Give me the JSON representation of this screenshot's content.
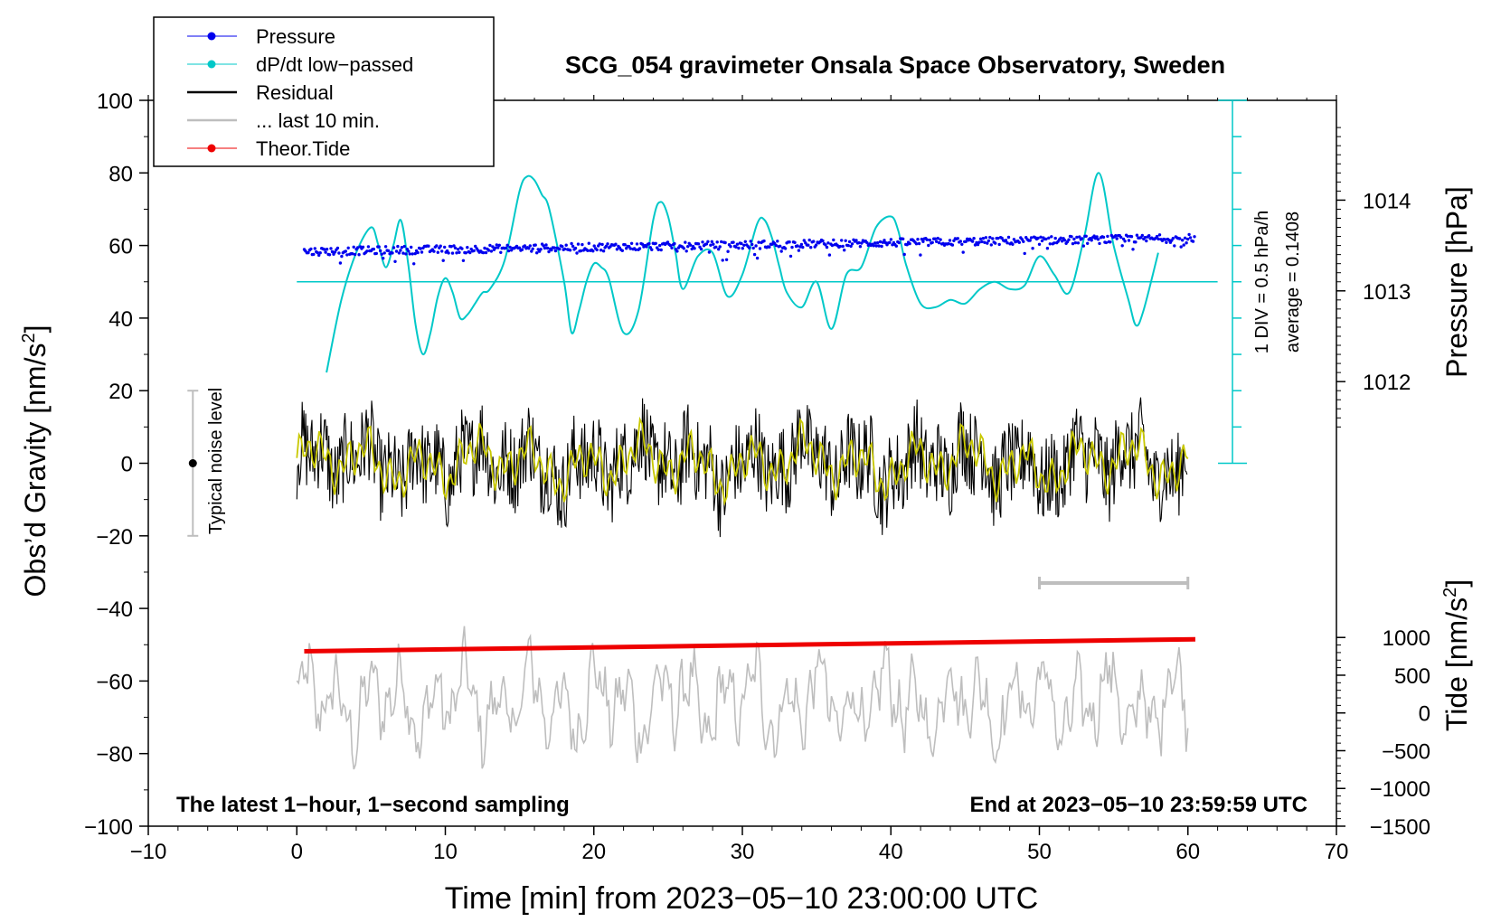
{
  "chart_data": {
    "type": "line",
    "title": "SCG_054 gravimeter Onsala Space Observatory, Sweden",
    "xlabel": "Time [min] from 2023−05−10 23:00:00 UTC",
    "ylabel": "Obs’d Gravity [nm/s",
    "ylabel_sup": "2",
    "ylabel_end": "]",
    "xlim": [
      -10,
      70
    ],
    "ylim": [
      -100,
      100
    ],
    "x_ticks": [
      -10,
      0,
      10,
      20,
      30,
      40,
      50,
      60,
      70
    ],
    "x_tick_labels": [
      "−10",
      "0",
      "10",
      "20",
      "30",
      "40",
      "50",
      "60",
      "70"
    ],
    "y_ticks": [
      -100,
      -80,
      -60,
      -40,
      -20,
      0,
      20,
      40,
      60,
      80,
      100
    ],
    "y_tick_labels": [
      "−100",
      "−80",
      "−60",
      "−40",
      "−20",
      "0",
      "20",
      "40",
      "60",
      "80",
      "100"
    ],
    "pressure_axis": {
      "label": "Pressure [hPa]",
      "ticks": [
        1012,
        1013,
        1014
      ],
      "tick_labels": [
        "1012",
        "1013",
        "1014"
      ],
      "value_at_y60": 1013.5,
      "hpa_per_gravity_unit": 0.04
    },
    "tide_axis": {
      "label": "Tide [nm/s",
      "label_sup": "2",
      "label_end": "]",
      "ticks": [
        -1500,
        -1000,
        -500,
        0,
        500,
        1000
      ],
      "tick_labels": [
        "−1500",
        "−1000",
        "−500",
        "0",
        "500",
        "1000"
      ],
      "range": [
        -1500,
        1000
      ]
    },
    "dpdt_scale": {
      "div_text": "1 DIV = 0.5 hPa/h",
      "average_text": "average = 0.1408",
      "zero_line_y": 50,
      "scale_x": 63
    },
    "noise_bar": {
      "label": "Typical noise level",
      "x": -7,
      "center": 0,
      "low": -20,
      "high": 20
    },
    "last10_bar": {
      "x_start": 50,
      "x_end": 60,
      "y": -33
    },
    "bottom_left_note": "The latest 1−hour, 1−second sampling",
    "bottom_right_note": "End at 2023−05−10 23:59:59 UTC",
    "legend": [
      {
        "label": "Pressure",
        "color": "#0000ee",
        "marker": true
      },
      {
        "label": "dP/dt low−passed",
        "color": "#00c8c8",
        "marker": true
      },
      {
        "label": "Residual",
        "color": "#000000",
        "marker": false
      },
      {
        "label": "... last 10 min.",
        "color": "#bebebe",
        "marker": false
      },
      {
        "label": "Theor.Tide",
        "color": "#ee0000",
        "marker": true
      }
    ],
    "series": [
      {
        "name": "dP/dt low-passed",
        "color": "#00c8c8",
        "x": [
          2,
          3,
          4,
          5,
          5.5,
          6,
          6.5,
          7,
          7.5,
          8,
          8.5,
          9,
          9.5,
          10,
          10.5,
          11,
          11.5,
          12,
          12.5,
          13,
          14,
          15,
          15.5,
          16,
          16.5,
          17,
          18,
          18.5,
          19,
          19.5,
          20,
          20.5,
          21,
          22,
          23,
          24,
          24.5,
          25,
          25.5,
          26,
          27,
          28,
          29,
          30,
          31,
          31.5,
          32,
          32.5,
          33,
          34,
          35,
          36,
          37,
          38,
          39,
          40,
          40.5,
          41,
          42,
          43,
          44,
          45,
          46,
          47,
          48,
          49,
          50,
          51,
          52,
          53,
          54,
          55,
          56,
          56.5,
          57,
          58
        ],
        "values": [
          25,
          45,
          58,
          65,
          60,
          54,
          60,
          67,
          55,
          38,
          30,
          36,
          46,
          51,
          47,
          40,
          41,
          44,
          47,
          48,
          56,
          75,
          79,
          78,
          74,
          70,
          50,
          36,
          42,
          50,
          55,
          54,
          51,
          36,
          42,
          67,
          72,
          68,
          58,
          48,
          57,
          58,
          46,
          52,
          66,
          67,
          62,
          54,
          47,
          43,
          50,
          37,
          52,
          54,
          65,
          68,
          64,
          55,
          44,
          43,
          45,
          44,
          48,
          50,
          48,
          49,
          57,
          52,
          47,
          62,
          80,
          60,
          45,
          38,
          42,
          58
        ]
      },
      {
        "name": "Theor.Tide",
        "color": "#ee0000",
        "x": [
          0.5,
          60.5
        ],
        "values": [
          -51.8,
          -48.5
        ]
      }
    ]
  }
}
